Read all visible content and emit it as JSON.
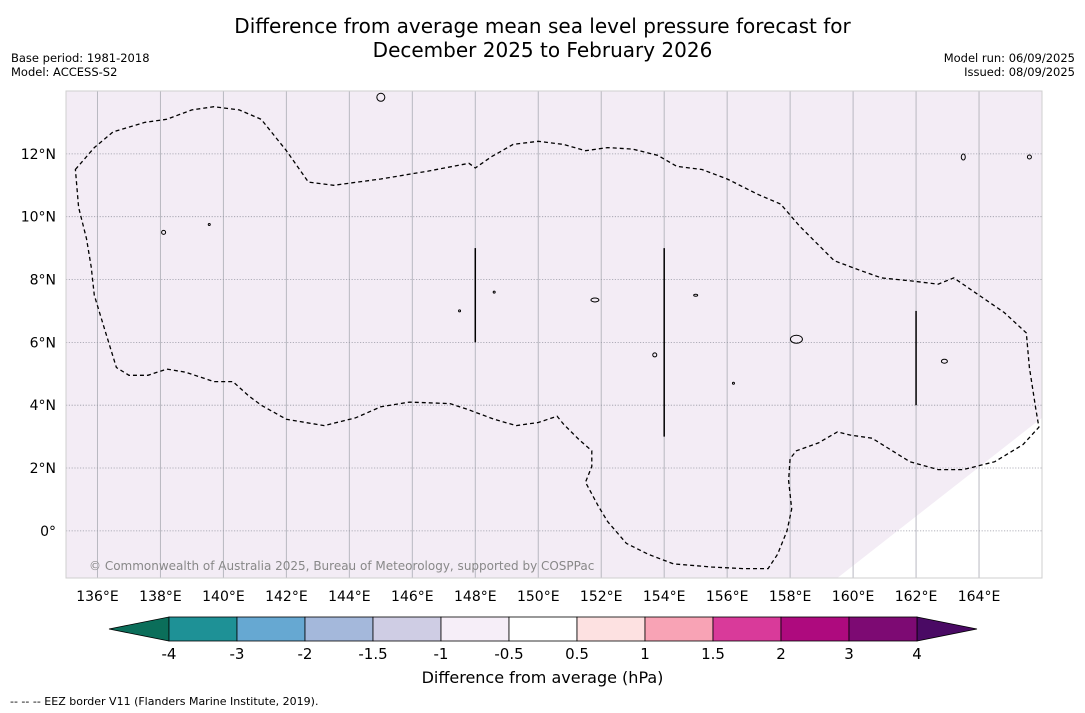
{
  "title": {
    "line1": "Difference from average mean sea level pressure forecast for",
    "line2": "December 2025 to February 2026"
  },
  "meta_left": {
    "base_period": "Base period: 1981-2018",
    "model": "Model: ACCESS-S2"
  },
  "meta_right": {
    "model_run": "Model run: 06/09/2025",
    "issued": "Issued: 08/09/2025"
  },
  "map": {
    "lon_range": [
      135.0,
      166.0
    ],
    "lat_range": [
      -1.5,
      14.0
    ],
    "lon_ticks": [
      "136°E",
      "138°E",
      "140°E",
      "142°E",
      "144°E",
      "146°E",
      "148°E",
      "150°E",
      "152°E",
      "154°E",
      "156°E",
      "158°E",
      "160°E",
      "162°E",
      "164°E"
    ],
    "lon_tick_values": [
      136,
      138,
      140,
      142,
      144,
      146,
      148,
      150,
      152,
      154,
      156,
      158,
      160,
      162,
      164
    ],
    "lat_ticks": [
      "12°N",
      "10°N",
      "8°N",
      "6°N",
      "4°N",
      "2°N",
      "0°"
    ],
    "lat_tick_values": [
      12,
      10,
      8,
      6,
      4,
      2,
      0
    ],
    "gridlines": true,
    "fill_color": "#f3ecf5",
    "fill_category": "-0.5 to 0.5",
    "copyright": "© Commonwealth of Australia 2025, Bureau of Meteorology, supported by COSPPac"
  },
  "colorbar": {
    "label": "Difference from average (hPa)",
    "tick_labels": [
      "-4",
      "-3",
      "-2",
      "-1.5",
      "-1",
      "-0.5",
      "0.5",
      "1",
      "1.5",
      "2",
      "3",
      "4"
    ],
    "low_extend_color": "#0b6e5a",
    "high_extend_color": "#4a0a64",
    "colors": [
      "#1e9196",
      "#66a8d2",
      "#a4b8db",
      "#cfcde4",
      "#f6eef8",
      "#ffffff",
      "#fde1e1",
      "#f8a3b5",
      "#d93a9a",
      "#ae0a7e",
      "#7d0a73"
    ]
  },
  "footnote": "--  --  -- EEZ border V11 (Flanders Marine Institute, 2019)."
}
